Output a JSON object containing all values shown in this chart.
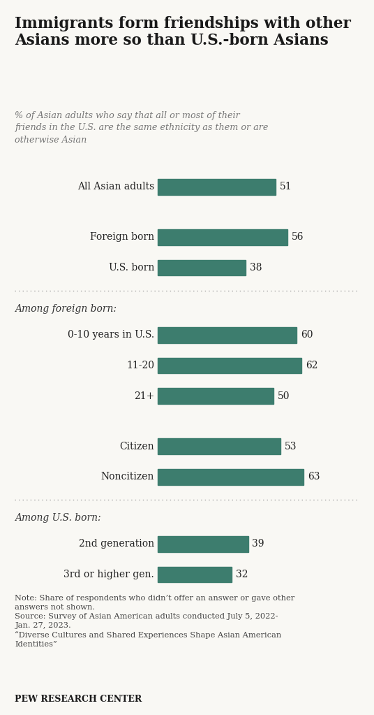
{
  "title": "Immigrants form friendships with other\nAsians more so than U.S.-born Asians",
  "subtitle": "% of Asian adults who say that all or most of their\nfriends in the U.S. are the same ethnicity as them or are\notherwise Asian",
  "bar_color": "#3d7d6e",
  "background_color": "#f9f8f4",
  "rows": [
    {
      "label": "All Asian adults",
      "value": 51,
      "type": "bar"
    },
    {
      "label": "",
      "value": null,
      "type": "gap"
    },
    {
      "label": "Foreign born",
      "value": 56,
      "type": "bar"
    },
    {
      "label": "U.S. born",
      "value": 38,
      "type": "bar"
    },
    {
      "label": "",
      "value": null,
      "type": "separator"
    },
    {
      "label": "Among foreign born:",
      "value": null,
      "type": "section_label"
    },
    {
      "label": "0-10 years in U.S.",
      "value": 60,
      "type": "bar"
    },
    {
      "label": "11-20",
      "value": 62,
      "type": "bar"
    },
    {
      "label": "21+",
      "value": 50,
      "type": "bar"
    },
    {
      "label": "",
      "value": null,
      "type": "gap"
    },
    {
      "label": "Citizen",
      "value": 53,
      "type": "bar"
    },
    {
      "label": "Noncitizen",
      "value": 63,
      "type": "bar"
    },
    {
      "label": "",
      "value": null,
      "type": "separator"
    },
    {
      "label": "Among U.S. born:",
      "value": null,
      "type": "section_label"
    },
    {
      "label": "2nd generation",
      "value": 39,
      "type": "bar"
    },
    {
      "label": "3rd or higher gen.",
      "value": 32,
      "type": "bar"
    }
  ],
  "note_line1": "Note: Share of respondents who didn’t offer an answer or gave other",
  "note_line2": "answers not shown.",
  "note_line3": "Source: Survey of Asian American adults conducted July 5, 2022-",
  "note_line4": "Jan. 27, 2023.",
  "note_line5": "“Diverse Cultures and Shared Experiences Shape Asian American",
  "note_line6": "Identities”",
  "source_label": "PEW RESEARCH CENTER",
  "label_fontsize": 10.0,
  "value_fontsize": 10.0,
  "bar_max": 75
}
